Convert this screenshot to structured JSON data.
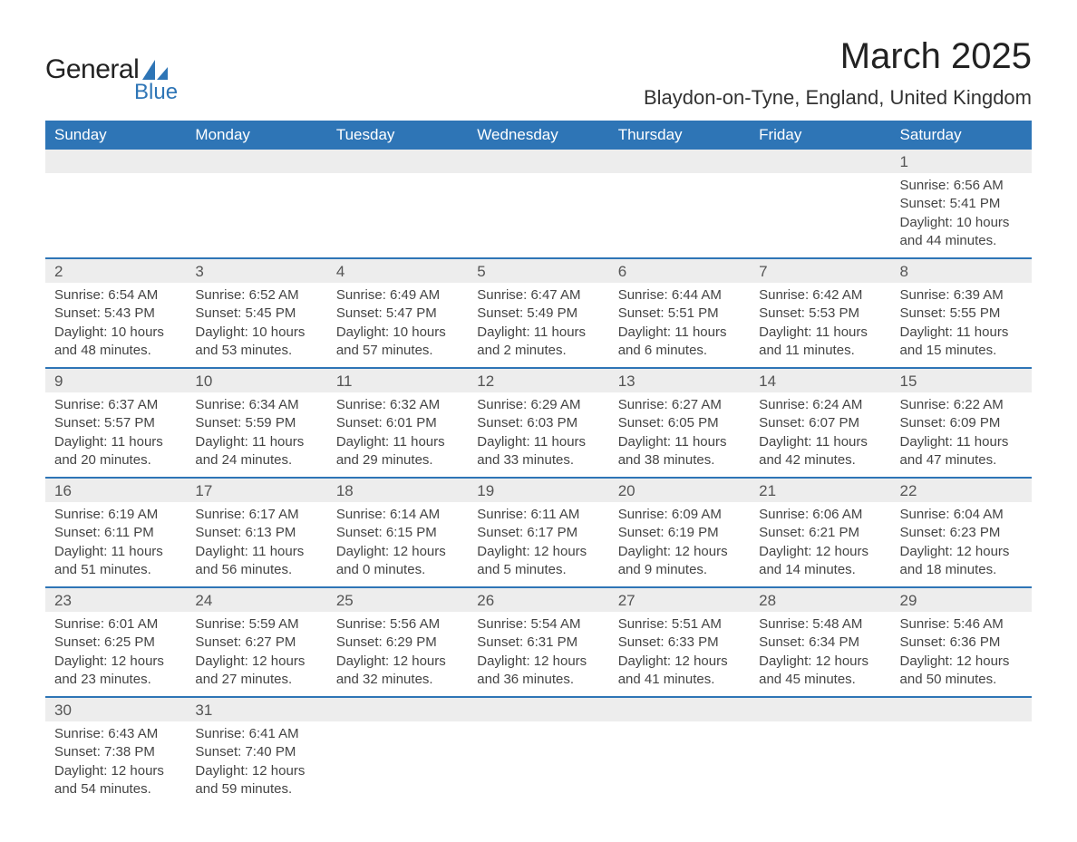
{
  "logo": {
    "general": "General",
    "blue": "Blue",
    "sail_color": "#2E75B6"
  },
  "header": {
    "title": "March 2025",
    "location": "Blaydon-on-Tyne, England, United Kingdom"
  },
  "colors": {
    "header_bg": "#2E75B6",
    "header_text": "#ffffff",
    "daynum_bg": "#EDEDED",
    "row_border": "#2E75B6",
    "body_text": "#444444",
    "page_bg": "#ffffff"
  },
  "weekdays": [
    "Sunday",
    "Monday",
    "Tuesday",
    "Wednesday",
    "Thursday",
    "Friday",
    "Saturday"
  ],
  "weeks": [
    [
      null,
      null,
      null,
      null,
      null,
      null,
      {
        "n": "1",
        "sunrise": "6:56 AM",
        "sunset": "5:41 PM",
        "dl_h": "10",
        "dl_m": "44"
      }
    ],
    [
      {
        "n": "2",
        "sunrise": "6:54 AM",
        "sunset": "5:43 PM",
        "dl_h": "10",
        "dl_m": "48"
      },
      {
        "n": "3",
        "sunrise": "6:52 AM",
        "sunset": "5:45 PM",
        "dl_h": "10",
        "dl_m": "53"
      },
      {
        "n": "4",
        "sunrise": "6:49 AM",
        "sunset": "5:47 PM",
        "dl_h": "10",
        "dl_m": "57"
      },
      {
        "n": "5",
        "sunrise": "6:47 AM",
        "sunset": "5:49 PM",
        "dl_h": "11",
        "dl_m": "2"
      },
      {
        "n": "6",
        "sunrise": "6:44 AM",
        "sunset": "5:51 PM",
        "dl_h": "11",
        "dl_m": "6"
      },
      {
        "n": "7",
        "sunrise": "6:42 AM",
        "sunset": "5:53 PM",
        "dl_h": "11",
        "dl_m": "11"
      },
      {
        "n": "8",
        "sunrise": "6:39 AM",
        "sunset": "5:55 PM",
        "dl_h": "11",
        "dl_m": "15"
      }
    ],
    [
      {
        "n": "9",
        "sunrise": "6:37 AM",
        "sunset": "5:57 PM",
        "dl_h": "11",
        "dl_m": "20"
      },
      {
        "n": "10",
        "sunrise": "6:34 AM",
        "sunset": "5:59 PM",
        "dl_h": "11",
        "dl_m": "24"
      },
      {
        "n": "11",
        "sunrise": "6:32 AM",
        "sunset": "6:01 PM",
        "dl_h": "11",
        "dl_m": "29"
      },
      {
        "n": "12",
        "sunrise": "6:29 AM",
        "sunset": "6:03 PM",
        "dl_h": "11",
        "dl_m": "33"
      },
      {
        "n": "13",
        "sunrise": "6:27 AM",
        "sunset": "6:05 PM",
        "dl_h": "11",
        "dl_m": "38"
      },
      {
        "n": "14",
        "sunrise": "6:24 AM",
        "sunset": "6:07 PM",
        "dl_h": "11",
        "dl_m": "42"
      },
      {
        "n": "15",
        "sunrise": "6:22 AM",
        "sunset": "6:09 PM",
        "dl_h": "11",
        "dl_m": "47"
      }
    ],
    [
      {
        "n": "16",
        "sunrise": "6:19 AM",
        "sunset": "6:11 PM",
        "dl_h": "11",
        "dl_m": "51"
      },
      {
        "n": "17",
        "sunrise": "6:17 AM",
        "sunset": "6:13 PM",
        "dl_h": "11",
        "dl_m": "56"
      },
      {
        "n": "18",
        "sunrise": "6:14 AM",
        "sunset": "6:15 PM",
        "dl_h": "12",
        "dl_m": "0"
      },
      {
        "n": "19",
        "sunrise": "6:11 AM",
        "sunset": "6:17 PM",
        "dl_h": "12",
        "dl_m": "5"
      },
      {
        "n": "20",
        "sunrise": "6:09 AM",
        "sunset": "6:19 PM",
        "dl_h": "12",
        "dl_m": "9"
      },
      {
        "n": "21",
        "sunrise": "6:06 AM",
        "sunset": "6:21 PM",
        "dl_h": "12",
        "dl_m": "14"
      },
      {
        "n": "22",
        "sunrise": "6:04 AM",
        "sunset": "6:23 PM",
        "dl_h": "12",
        "dl_m": "18"
      }
    ],
    [
      {
        "n": "23",
        "sunrise": "6:01 AM",
        "sunset": "6:25 PM",
        "dl_h": "12",
        "dl_m": "23"
      },
      {
        "n": "24",
        "sunrise": "5:59 AM",
        "sunset": "6:27 PM",
        "dl_h": "12",
        "dl_m": "27"
      },
      {
        "n": "25",
        "sunrise": "5:56 AM",
        "sunset": "6:29 PM",
        "dl_h": "12",
        "dl_m": "32"
      },
      {
        "n": "26",
        "sunrise": "5:54 AM",
        "sunset": "6:31 PM",
        "dl_h": "12",
        "dl_m": "36"
      },
      {
        "n": "27",
        "sunrise": "5:51 AM",
        "sunset": "6:33 PM",
        "dl_h": "12",
        "dl_m": "41"
      },
      {
        "n": "28",
        "sunrise": "5:48 AM",
        "sunset": "6:34 PM",
        "dl_h": "12",
        "dl_m": "45"
      },
      {
        "n": "29",
        "sunrise": "5:46 AM",
        "sunset": "6:36 PM",
        "dl_h": "12",
        "dl_m": "50"
      }
    ],
    [
      {
        "n": "30",
        "sunrise": "6:43 AM",
        "sunset": "7:38 PM",
        "dl_h": "12",
        "dl_m": "54"
      },
      {
        "n": "31",
        "sunrise": "6:41 AM",
        "sunset": "7:40 PM",
        "dl_h": "12",
        "dl_m": "59"
      },
      null,
      null,
      null,
      null,
      null
    ]
  ],
  "labels": {
    "sunrise": "Sunrise:",
    "sunset": "Sunset:",
    "daylight": "Daylight:",
    "hours": "hours",
    "and": "and",
    "minutes": "minutes."
  }
}
